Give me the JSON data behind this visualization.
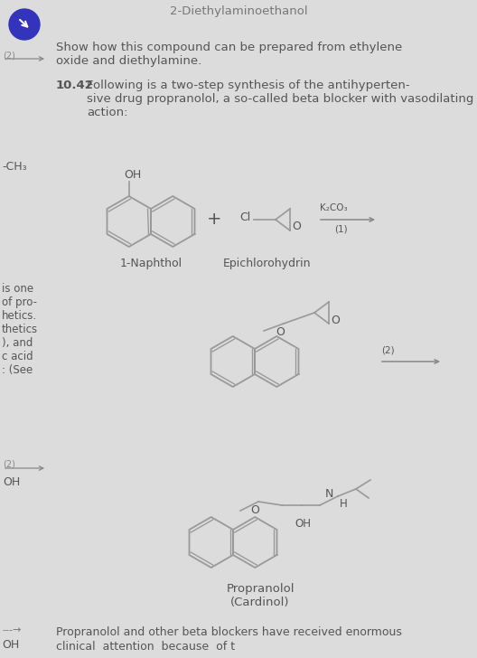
{
  "bg_color": "#dcdcdc",
  "title_top": "2-Diethylaminoethanol",
  "text1": "Show how this compound can be prepared from ethylene\noxide and diethylamine.",
  "problem_label": "10.42",
  "text2": "Following is a two-step synthesis of the antihyperten-\nsive drug propranolol, a so-called beta blocker with vasodilating\naction:",
  "label_1naphthol": "1-Naphthol",
  "label_epichlorohydrin": "Epichlorohydrin",
  "label_reagent1": "K₂CO₃",
  "label_step1": "(1)",
  "label_step2": "(2)",
  "label_propranolol": "Propranolol\n(Cardinol)",
  "bottom_text1": "Propranolol and other beta blockers have received enormous",
  "bottom_text2": "clinical  attention  because  of t",
  "struct_color": "#999999",
  "text_color": "#555555",
  "sidebar_color": "#666666",
  "circle_color": "#3333bb",
  "arrow_color": "#888888"
}
